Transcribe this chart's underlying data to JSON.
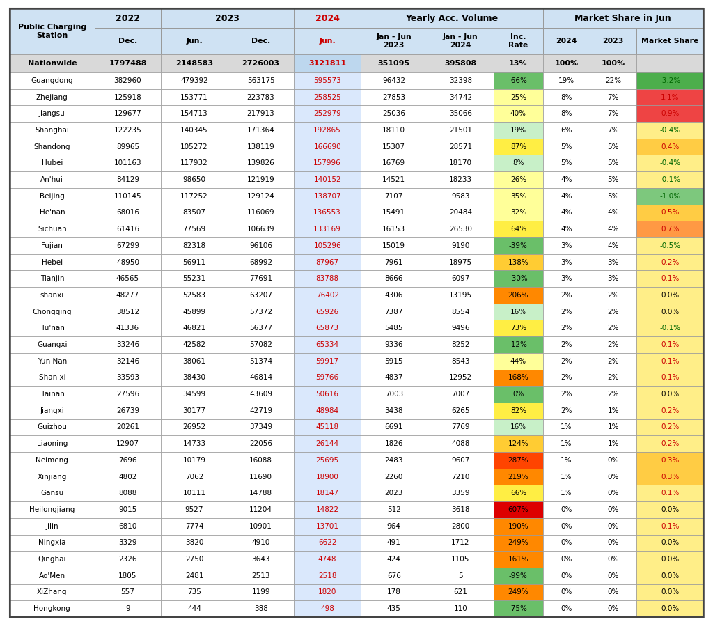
{
  "rows": [
    [
      "Nationwide",
      "1797488",
      "2148583",
      "2726003",
      "3121811",
      "351095",
      "395808",
      "13%",
      "100%",
      "100%",
      ""
    ],
    [
      "Guangdong",
      "382960",
      "479392",
      "563175",
      "595573",
      "96432",
      "32398",
      "-66%",
      "19%",
      "22%",
      "-3.2%"
    ],
    [
      "Zhejiang",
      "125918",
      "153771",
      "223783",
      "258525",
      "27853",
      "34742",
      "25%",
      "8%",
      "7%",
      "1.1%"
    ],
    [
      "Jiangsu",
      "129677",
      "154713",
      "217913",
      "252979",
      "25036",
      "35066",
      "40%",
      "8%",
      "7%",
      "0.9%"
    ],
    [
      "Shanghai",
      "122235",
      "140345",
      "171364",
      "192865",
      "18110",
      "21501",
      "19%",
      "6%",
      "7%",
      "-0.4%"
    ],
    [
      "Shandong",
      "89965",
      "105272",
      "138119",
      "166690",
      "15307",
      "28571",
      "87%",
      "5%",
      "5%",
      "0.4%"
    ],
    [
      "Hubei",
      "101163",
      "117932",
      "139826",
      "157996",
      "16769",
      "18170",
      "8%",
      "5%",
      "5%",
      "-0.4%"
    ],
    [
      "An'hui",
      "84129",
      "98650",
      "121919",
      "140152",
      "14521",
      "18233",
      "26%",
      "4%",
      "5%",
      "-0.1%"
    ],
    [
      "Beijing",
      "110145",
      "117252",
      "129124",
      "138707",
      "7107",
      "9583",
      "35%",
      "4%",
      "5%",
      "-1.0%"
    ],
    [
      "He'nan",
      "68016",
      "83507",
      "116069",
      "136553",
      "15491",
      "20484",
      "32%",
      "4%",
      "4%",
      "0.5%"
    ],
    [
      "Sichuan",
      "61416",
      "77569",
      "106639",
      "133169",
      "16153",
      "26530",
      "64%",
      "4%",
      "4%",
      "0.7%"
    ],
    [
      "Fujian",
      "67299",
      "82318",
      "96106",
      "105296",
      "15019",
      "9190",
      "-39%",
      "3%",
      "4%",
      "-0.5%"
    ],
    [
      "Hebei",
      "48950",
      "56911",
      "68992",
      "87967",
      "7961",
      "18975",
      "138%",
      "3%",
      "3%",
      "0.2%"
    ],
    [
      "Tianjin",
      "46565",
      "55231",
      "77691",
      "83788",
      "8666",
      "6097",
      "-30%",
      "3%",
      "3%",
      "0.1%"
    ],
    [
      "shanxi",
      "48277",
      "52583",
      "63207",
      "76402",
      "4306",
      "13195",
      "206%",
      "2%",
      "2%",
      "0.0%"
    ],
    [
      "Chongqing",
      "38512",
      "45899",
      "57372",
      "65926",
      "7387",
      "8554",
      "16%",
      "2%",
      "2%",
      "0.0%"
    ],
    [
      "Hu'nan",
      "41336",
      "46821",
      "56377",
      "65873",
      "5485",
      "9496",
      "73%",
      "2%",
      "2%",
      "-0.1%"
    ],
    [
      "Guangxi",
      "33246",
      "42582",
      "57082",
      "65334",
      "9336",
      "8252",
      "-12%",
      "2%",
      "2%",
      "0.1%"
    ],
    [
      "Yun Nan",
      "32146",
      "38061",
      "51374",
      "59917",
      "5915",
      "8543",
      "44%",
      "2%",
      "2%",
      "0.1%"
    ],
    [
      "Shan xi",
      "33593",
      "38430",
      "46814",
      "59766",
      "4837",
      "12952",
      "168%",
      "2%",
      "2%",
      "0.1%"
    ],
    [
      "Hainan",
      "27596",
      "34599",
      "43609",
      "50616",
      "7003",
      "7007",
      "0%",
      "2%",
      "2%",
      "0.0%"
    ],
    [
      "Jiangxi",
      "26739",
      "30177",
      "42719",
      "48984",
      "3438",
      "6265",
      "82%",
      "2%",
      "1%",
      "0.2%"
    ],
    [
      "Guizhou",
      "20261",
      "26952",
      "37349",
      "45118",
      "6691",
      "7769",
      "16%",
      "1%",
      "1%",
      "0.2%"
    ],
    [
      "Liaoning",
      "12907",
      "14733",
      "22056",
      "26144",
      "1826",
      "4088",
      "124%",
      "1%",
      "1%",
      "0.2%"
    ],
    [
      "Neimeng",
      "7696",
      "10179",
      "16088",
      "25695",
      "2483",
      "9607",
      "287%",
      "1%",
      "0%",
      "0.3%"
    ],
    [
      "Xinjiang",
      "4802",
      "7062",
      "11690",
      "18900",
      "2260",
      "7210",
      "219%",
      "1%",
      "0%",
      "0.3%"
    ],
    [
      "Gansu",
      "8088",
      "10111",
      "14788",
      "18147",
      "2023",
      "3359",
      "66%",
      "1%",
      "0%",
      "0.1%"
    ],
    [
      "Heilongjiang",
      "9015",
      "9527",
      "11204",
      "14822",
      "512",
      "3618",
      "607%",
      "0%",
      "0%",
      "0.0%"
    ],
    [
      "Jilin",
      "6810",
      "7774",
      "10901",
      "13701",
      "964",
      "2800",
      "190%",
      "0%",
      "0%",
      "0.1%"
    ],
    [
      "Ningxia",
      "3329",
      "3820",
      "4910",
      "6622",
      "491",
      "1712",
      "249%",
      "0%",
      "0%",
      "0.0%"
    ],
    [
      "Qinghai",
      "2326",
      "2750",
      "3643",
      "4748",
      "424",
      "1105",
      "161%",
      "0%",
      "0%",
      "0.0%"
    ],
    [
      "Ao'Men",
      "1805",
      "2481",
      "2513",
      "2518",
      "676",
      "5",
      "-99%",
      "0%",
      "0%",
      "0.0%"
    ],
    [
      "XiZhang",
      "557",
      "735",
      "1199",
      "1820",
      "178",
      "621",
      "249%",
      "0%",
      "0%",
      "0.0%"
    ],
    [
      "Hongkong",
      "9",
      "444",
      "388",
      "498",
      "435",
      "110",
      "-75%",
      "0%",
      "0%",
      "0.0%"
    ]
  ],
  "header_bg": "#cfe2f3",
  "nationwide_bg": "#d9d9d9",
  "jun2024_bg": "#dae8fc",
  "white_bg": "#ffffff",
  "border_color": "#999999",
  "outer_border": "#444444"
}
